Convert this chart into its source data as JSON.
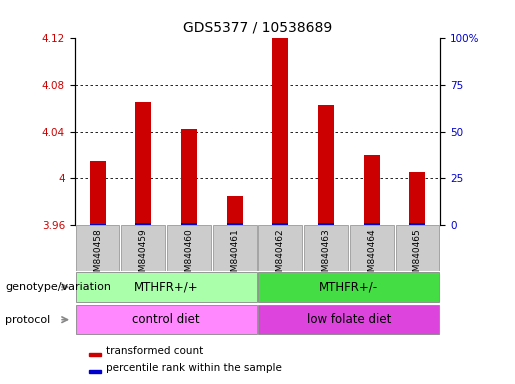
{
  "title": "GDS5377 / 10538689",
  "samples": [
    "GSM840458",
    "GSM840459",
    "GSM840460",
    "GSM840461",
    "GSM840462",
    "GSM840463",
    "GSM840464",
    "GSM840465"
  ],
  "red_values": [
    4.015,
    4.065,
    4.042,
    3.985,
    4.122,
    4.063,
    4.02,
    4.005
  ],
  "blue_heights_pct": [
    3.0,
    4.0,
    5.0,
    3.5,
    4.5,
    3.5,
    3.5,
    4.0
  ],
  "y_min": 3.96,
  "y_max": 4.12,
  "y_ticks": [
    3.96,
    4.0,
    4.04,
    4.08,
    4.12
  ],
  "y_tick_labels": [
    "3.96",
    "4",
    "4.04",
    "4.08",
    "4.12"
  ],
  "y2_ticks": [
    0,
    25,
    50,
    75,
    100
  ],
  "y2_tick_labels": [
    "0",
    "25",
    "50",
    "75",
    "100%"
  ],
  "genotype_colors": [
    "#aaffaa",
    "#44dd44"
  ],
  "genotype_texts": [
    "MTHFR+/+",
    "MTHFR+/-"
  ],
  "protocol_colors": [
    "#ff88ff",
    "#dd44dd"
  ],
  "protocol_texts": [
    "control diet",
    "low folate diet"
  ],
  "genotype_row_label": "genotype/variation",
  "protocol_row_label": "protocol",
  "legend_red": "transformed count",
  "legend_blue": "percentile rank within the sample",
  "red_color": "#cc0000",
  "blue_color": "#0000cc",
  "sample_bg_color": "#cccccc",
  "title_fontsize": 10,
  "tick_fontsize": 7.5,
  "annot_fontsize": 8.5,
  "label_fontsize": 8,
  "legend_fontsize": 7.5
}
